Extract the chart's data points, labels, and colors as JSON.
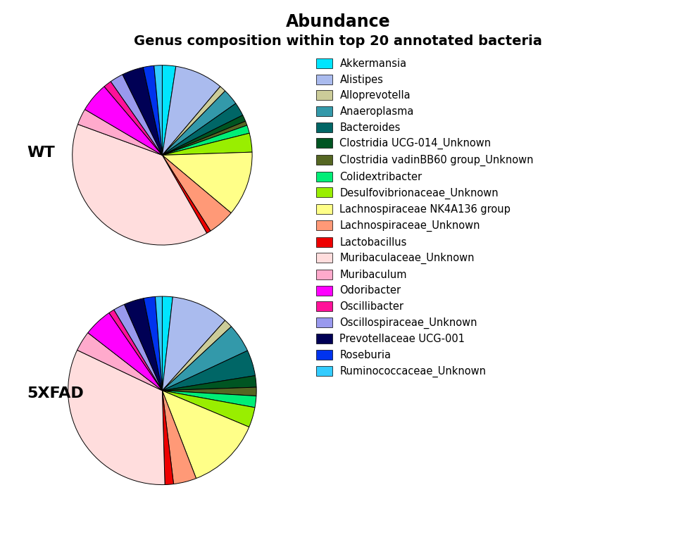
{
  "title": "Abundance",
  "subtitle": "Genus composition within top 20 annotated bacteria",
  "labels": [
    "Akkermansia",
    "Alistipes",
    "Alloprevotella",
    "Anaeroplasma",
    "Bacteroides",
    "Clostridia UCG-014_Unknown",
    "Clostridia vadinBB60 group_Unknown",
    "Colidextribacter",
    "Desulfovibrionaceae_Unknown",
    "Lachnospiraceae NK4A136 group",
    "Lachnospiraceae_Unknown",
    "Lactobacillus",
    "Muribaculaceae_Unknown",
    "Muribaculum",
    "Odoribacter",
    "Oscillibacter",
    "Oscillospiraceae_Unknown",
    "Prevotellaceae UCG-001",
    "Roseburia",
    "Ruminococcaceae_Unknown"
  ],
  "colors": [
    "#00E5FF",
    "#AABBEE",
    "#CCCC99",
    "#3399AA",
    "#006666",
    "#005522",
    "#556622",
    "#00EE77",
    "#99EE00",
    "#FFFF88",
    "#FF9977",
    "#EE0000",
    "#FFDDDD",
    "#FFAACC",
    "#FF00FF",
    "#FF1199",
    "#9999EE",
    "#000055",
    "#0033EE",
    "#33CCFF"
  ],
  "wt_values": [
    2.5,
    9.0,
    1.2,
    3.0,
    2.5,
    1.2,
    0.8,
    1.5,
    3.5,
    12.0,
    5.0,
    0.8,
    40.0,
    3.0,
    5.5,
    1.5,
    2.5,
    4.0,
    2.0,
    1.5
  ],
  "fad_values": [
    1.8,
    10.0,
    1.5,
    5.0,
    4.5,
    2.0,
    1.5,
    2.0,
    3.5,
    13.0,
    4.0,
    1.5,
    33.0,
    3.5,
    5.0,
    1.0,
    2.0,
    3.5,
    2.0,
    1.2
  ],
  "wt_label": "WT",
  "fad_label": "5XFAD",
  "bg_color": "#FFFFFF"
}
